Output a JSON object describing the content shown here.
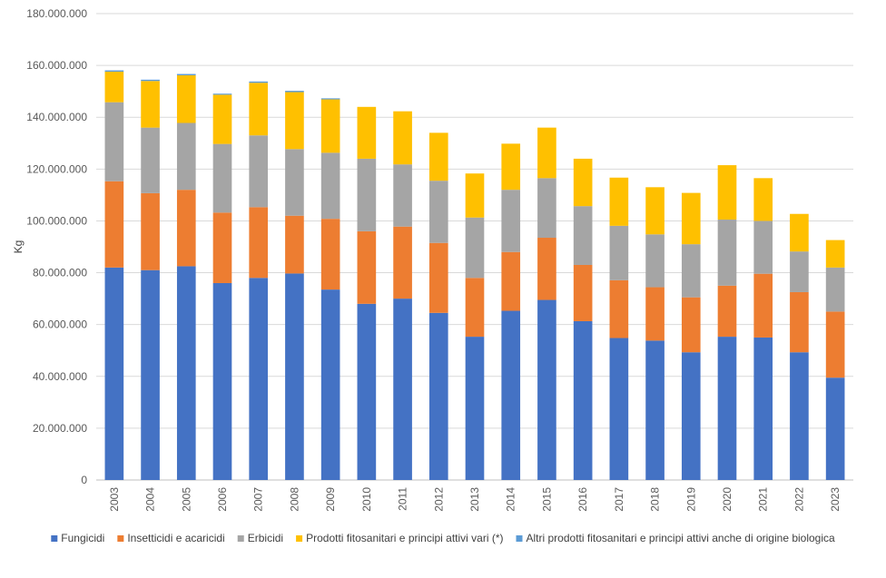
{
  "chart_data": {
    "type": "bar",
    "stacked": true,
    "title": "",
    "xlabel": "",
    "ylabel": "Kg",
    "ylim": [
      0,
      180000000
    ],
    "ytick_step": 20000000,
    "ytick_labels": [
      "0",
      "20.000.000",
      "40.000.000",
      "60.000.000",
      "80.000.000",
      "100.000.000",
      "120.000.000",
      "140.000.000",
      "160.000.000",
      "180.000.000"
    ],
    "grid": true,
    "legend_position": "bottom",
    "categories": [
      "2003",
      "2004",
      "2005",
      "2006",
      "2007",
      "2008",
      "2009",
      "2010",
      "2011",
      "2012",
      "2013",
      "2014",
      "2015",
      "2016",
      "2017",
      "2018",
      "2019",
      "2020",
      "2021",
      "2022",
      "2023"
    ],
    "series": [
      {
        "name": "Fungicidi",
        "color": "#4472c4",
        "values": [
          82000000,
          81000000,
          82500000,
          76000000,
          78000000,
          79700000,
          73500000,
          68000000,
          70000000,
          64500000,
          55300000,
          65300000,
          69500000,
          61300000,
          54800000,
          53800000,
          49300000,
          55300000,
          55000000,
          49300000,
          39500000
        ]
      },
      {
        "name": "Insetticidi e acaricidi",
        "color": "#ed7d31",
        "values": [
          33300000,
          29700000,
          29500000,
          27200000,
          27300000,
          22300000,
          27300000,
          28000000,
          27800000,
          27000000,
          22700000,
          22700000,
          24000000,
          21700000,
          22300000,
          20600000,
          21200000,
          19700000,
          24600000,
          23200000,
          25500000
        ]
      },
      {
        "name": "Erbicidi",
        "color": "#a5a5a5",
        "values": [
          30500000,
          25300000,
          25800000,
          26500000,
          27700000,
          25700000,
          25500000,
          28000000,
          24000000,
          24000000,
          23300000,
          24000000,
          23000000,
          22700000,
          21000000,
          20400000,
          20500000,
          25500000,
          20400000,
          15700000,
          17000000
        ]
      },
      {
        "name": "Prodotti fitosanitari e principi attivi vari (*)",
        "color": "#ffc000",
        "values": [
          11800000,
          18000000,
          18400000,
          19000000,
          20300000,
          22000000,
          20600000,
          20000000,
          20500000,
          18500000,
          17000000,
          17800000,
          19500000,
          18300000,
          18600000,
          18200000,
          19800000,
          21000000,
          16500000,
          14500000,
          10600000
        ]
      },
      {
        "name": "Altri prodotti fitosanitari e principi attivi anche di origine biologica",
        "color": "#5b9bd5",
        "values": [
          500000,
          500000,
          500000,
          400000,
          500000,
          500000,
          400000,
          0,
          0,
          0,
          0,
          0,
          0,
          0,
          0,
          0,
          0,
          0,
          0,
          0,
          0
        ]
      }
    ]
  }
}
